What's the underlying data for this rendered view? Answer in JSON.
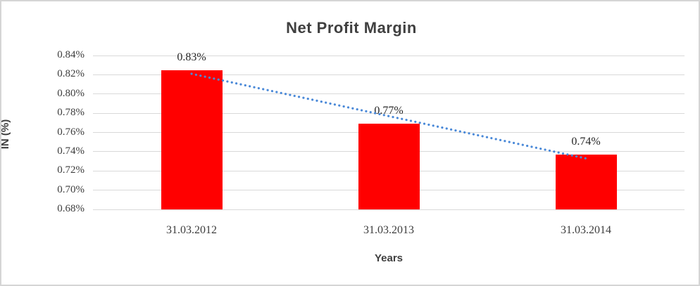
{
  "chart_data": {
    "type": "bar",
    "title": "Net Profit Margin",
    "xlabel": "Years",
    "ylabel": "IN (%)",
    "categories": [
      "31.03.2012",
      "31.03.2013",
      "31.03.2014"
    ],
    "series": [
      {
        "name": "Net Profit Margin",
        "values": [
          0.825,
          0.769,
          0.737
        ],
        "data_labels": [
          "0.83%",
          "0.77%",
          "0.74%"
        ]
      }
    ],
    "ylim": [
      0.68,
      0.84
    ],
    "ytick_step": 0.02,
    "ytick_labels": [
      "0.84%",
      "0.82%",
      "0.80%",
      "0.78%",
      "0.76%",
      "0.74%",
      "0.72%",
      "0.70%",
      "0.68%"
    ],
    "grid": true,
    "legend_position": "none",
    "trendline": {
      "type": "linear",
      "style": "dotted"
    },
    "colors": {
      "bar": "#ff0000",
      "trendline": "#4a89d8",
      "gridline": "#d9d9d9",
      "title_text": "#404040",
      "tick_text": "#3d3d3d"
    }
  }
}
